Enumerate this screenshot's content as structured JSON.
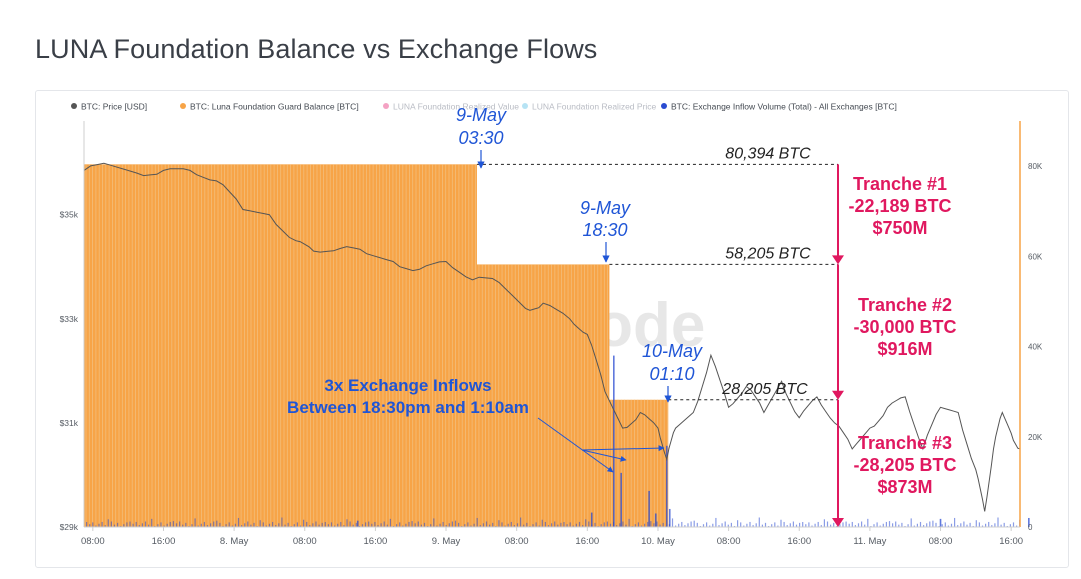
{
  "page": {
    "title": "LUNA Foundation Balance vs Exchange Flows"
  },
  "colors": {
    "price": "#555555",
    "balance": "#f7a447",
    "balance_stripe": "#f3bd7a",
    "realized_value": "#e7307a",
    "realized_price": "#5ec2e6",
    "inflow": "#2a4bd1",
    "annotation_blue": "#1f55d6",
    "annotation_magenta": "#e0185f",
    "right_axis_line": "#f7a447"
  },
  "chart_data": {
    "type": "line",
    "legend": {
      "placement": "top",
      "items": [
        {
          "name": "BTC: Price [USD]",
          "color": "#555555",
          "dimmed": false
        },
        {
          "name": "BTC: Luna Foundation Guard Balance [BTC]",
          "color": "#f7a447",
          "dimmed": false
        },
        {
          "name": "LUNA Foundation Realized Value",
          "color": "#e7307a",
          "dimmed": true
        },
        {
          "name": "LUNA Foundation Realized Price",
          "color": "#5ec2e6",
          "dimmed": true
        },
        {
          "name": "BTC: Exchange Inflow Volume (Total) - All Exchanges [BTC]",
          "color": "#2a4bd1",
          "dimmed": false
        }
      ]
    },
    "x_range": [
      "2022-05-07 07:00",
      "2022-05-11 17:00"
    ],
    "x_tick_labels": [
      "08:00",
      "16:00",
      "8. May",
      "08:00",
      "16:00",
      "9. May",
      "08:00",
      "16:00",
      "10. May",
      "08:00",
      "16:00",
      "11. May",
      "08:00",
      "16:00"
    ],
    "x_tick_times": [
      "2022-05-07 08:00",
      "2022-05-07 16:00",
      "2022-05-08 00:00",
      "2022-05-08 08:00",
      "2022-05-08 16:00",
      "2022-05-09 00:00",
      "2022-05-09 08:00",
      "2022-05-09 16:00",
      "2022-05-10 00:00",
      "2022-05-10 08:00",
      "2022-05-10 16:00",
      "2022-05-11 00:00",
      "2022-05-11 08:00",
      "2022-05-11 16:00"
    ],
    "y_left": {
      "label": "",
      "range": [
        29000,
        36800
      ],
      "ticks": [
        29000,
        31000,
        33000,
        35000
      ],
      "tick_labels": [
        "$29k",
        "$31k",
        "$33k",
        "$35k"
      ]
    },
    "y_right": {
      "label": "",
      "range": [
        0,
        90000
      ],
      "ticks": [
        0,
        20000,
        40000,
        60000,
        80000
      ],
      "tick_labels": [
        "0",
        "20K",
        "40K",
        "60K",
        "80K"
      ]
    },
    "grid": false,
    "series": [
      {
        "name": "BTC: Luna Foundation Guard Balance [BTC]",
        "axis": "right",
        "kind": "step-area",
        "points": [
          {
            "t": "2022-05-07 07:00",
            "v": 80394
          },
          {
            "t": "2022-05-09 03:30",
            "v": 58205
          },
          {
            "t": "2022-05-09 18:30",
            "v": 28205
          },
          {
            "t": "2022-05-10 01:10",
            "v": 0
          }
        ]
      },
      {
        "name": "BTC: Price [USD]",
        "axis": "left",
        "kind": "line",
        "points": [
          [
            "2022-05-07 07:00",
            35850
          ],
          [
            "2022-05-07 10:00",
            35950
          ],
          [
            "2022-05-07 13:00",
            35800
          ],
          [
            "2022-05-07 16:00",
            35850
          ],
          [
            "2022-05-07 19:00",
            35850
          ],
          [
            "2022-05-07 22:00",
            35650
          ],
          [
            "2022-05-08 01:00",
            35100
          ],
          [
            "2022-05-08 04:00",
            35000
          ],
          [
            "2022-05-08 07:00",
            34500
          ],
          [
            "2022-05-08 09:00",
            34300
          ],
          [
            "2022-05-08 12:00",
            34350
          ],
          [
            "2022-05-08 15:00",
            34250
          ],
          [
            "2022-05-08 18:00",
            34100
          ],
          [
            "2022-05-08 21:00",
            33950
          ],
          [
            "2022-05-09 00:00",
            34100
          ],
          [
            "2022-05-09 03:00",
            33750
          ],
          [
            "2022-05-09 06:00",
            33700
          ],
          [
            "2022-05-09 09:00",
            33200
          ],
          [
            "2022-05-09 11:00",
            33300
          ],
          [
            "2022-05-09 14:00",
            33000
          ],
          [
            "2022-05-09 16:00",
            32700
          ],
          [
            "2022-05-09 18:00",
            31600
          ],
          [
            "2022-05-09 20:00",
            30900
          ],
          [
            "2022-05-09 22:00",
            31200
          ],
          [
            "2022-05-10 00:00",
            30900
          ],
          [
            "2022-05-10 01:00",
            30300
          ],
          [
            "2022-05-10 02:00",
            30900
          ],
          [
            "2022-05-10 04:00",
            31200
          ],
          [
            "2022-05-10 06:00",
            32300
          ],
          [
            "2022-05-10 08:00",
            31300
          ],
          [
            "2022-05-10 10:00",
            31700
          ],
          [
            "2022-05-10 12:00",
            31200
          ],
          [
            "2022-05-10 14:00",
            31800
          ],
          [
            "2022-05-10 16:00",
            31100
          ],
          [
            "2022-05-10 18:00",
            31500
          ],
          [
            "2022-05-10 20:00",
            31000
          ],
          [
            "2022-05-10 22:00",
            30500
          ],
          [
            "2022-05-11 00:00",
            30900
          ],
          [
            "2022-05-11 02:00",
            31300
          ],
          [
            "2022-05-11 04:00",
            31500
          ],
          [
            "2022-05-11 06:00",
            30500
          ],
          [
            "2022-05-11 08:00",
            31300
          ],
          [
            "2022-05-11 10:00",
            31200
          ],
          [
            "2022-05-11 12:00",
            30100
          ],
          [
            "2022-05-11 13:00",
            29300
          ],
          [
            "2022-05-11 14:00",
            30500
          ],
          [
            "2022-05-11 15:00",
            31200
          ],
          [
            "2022-05-11 16:00",
            30800
          ],
          [
            "2022-05-11 17:00",
            30500
          ]
        ]
      },
      {
        "name": "BTC: Exchange Inflow Volume (Total) - All Exchanges [BTC]",
        "axis": "right",
        "kind": "bar",
        "points": [
          [
            "2022-05-08 14:00",
            1400
          ],
          [
            "2022-05-09 16:30",
            3200
          ],
          [
            "2022-05-09 19:00",
            38000
          ],
          [
            "2022-05-09 19:50",
            12000
          ],
          [
            "2022-05-09 23:00",
            8000
          ],
          [
            "2022-05-09 23:45",
            3000
          ],
          [
            "2022-05-10 01:00",
            18000
          ],
          [
            "2022-05-10 01:20",
            4000
          ],
          [
            "2022-05-11 18:00",
            2000
          ],
          [
            "2022-05-11 08:00",
            1800
          ]
        ]
      }
    ],
    "annotations": {
      "tranche_levels": [
        {
          "label": "80,394 BTC",
          "value": 80394
        },
        {
          "label": "58,205 BTC",
          "value": 58205
        },
        {
          "label": "28,205 BTC",
          "value": 28205
        }
      ],
      "times": [
        {
          "line1": "9-May",
          "line2": "03:30"
        },
        {
          "line1": "9-May",
          "line2": "18:30"
        },
        {
          "line1": "10-May",
          "line2": "01:10"
        }
      ],
      "tranches": [
        {
          "name": "Tranche #1",
          "btc": "-22,189 BTC",
          "usd": "$750M"
        },
        {
          "name": "Tranche #2",
          "btc": "-30,000 BTC",
          "usd": "$916M"
        },
        {
          "name": "Tranche #3",
          "btc": "-28,205 BTC",
          "usd": "$873M"
        }
      ],
      "inflows_note": {
        "line1": "3x Exchange Inflows",
        "line2": "Between 18:30pm and 1:10am"
      },
      "watermark": "glassnode"
    }
  }
}
